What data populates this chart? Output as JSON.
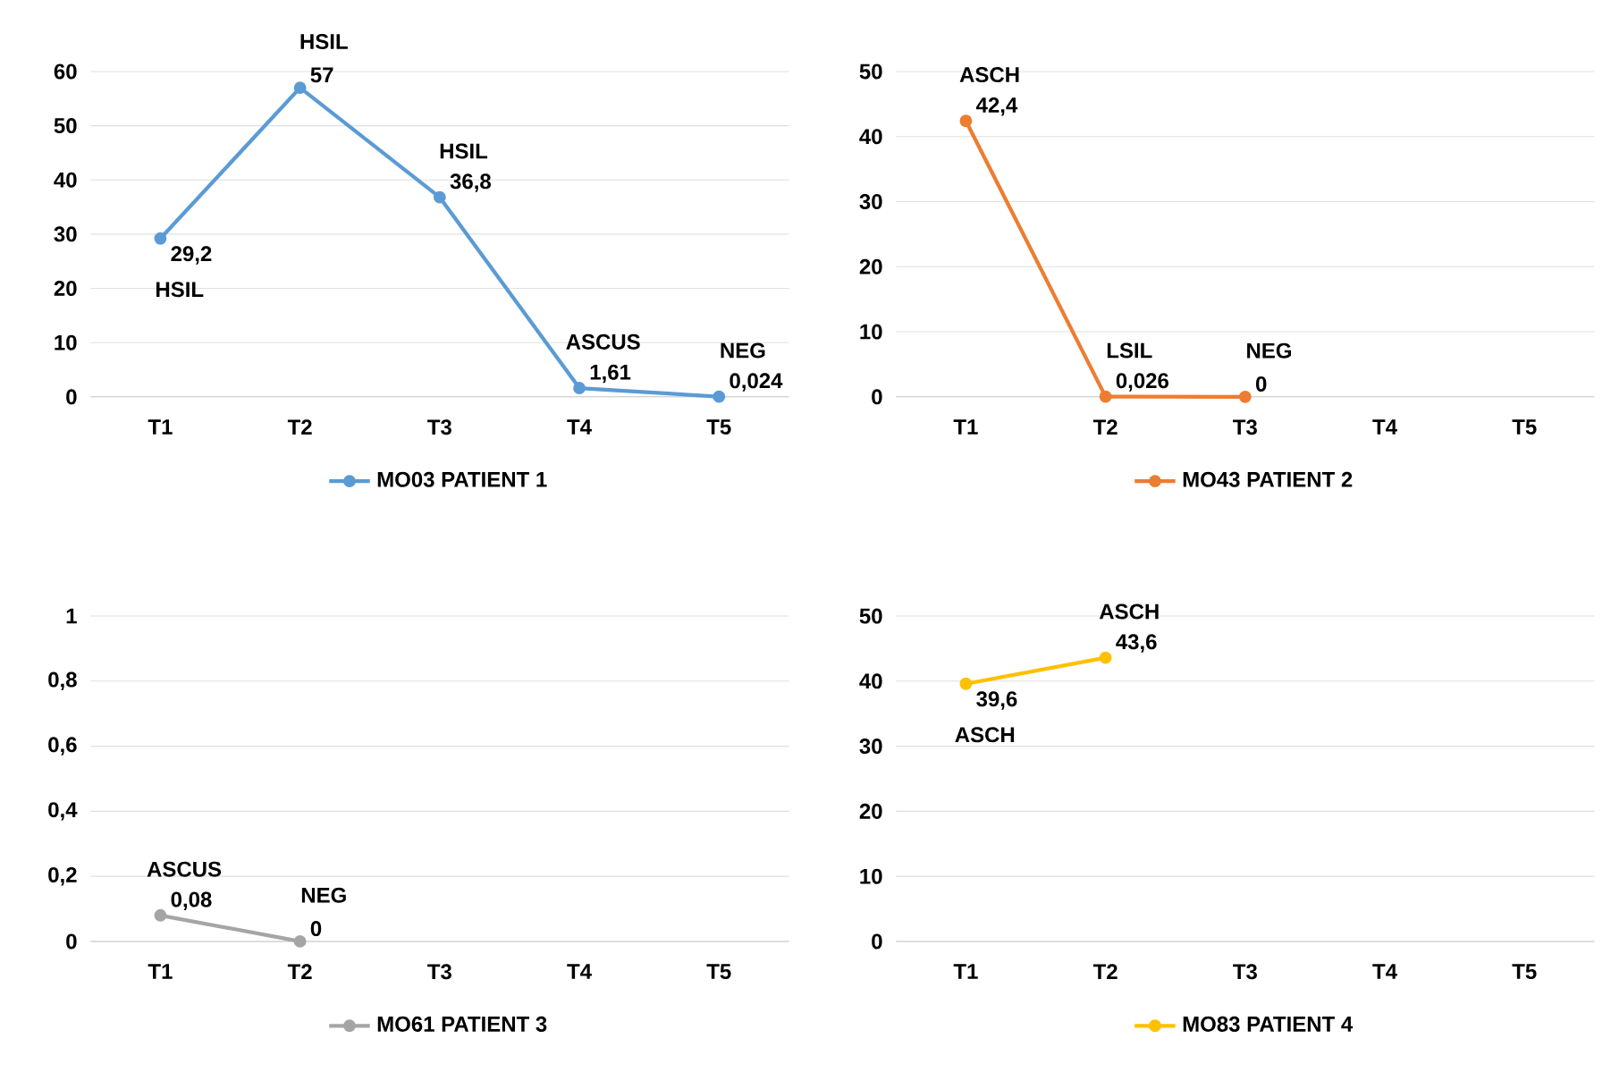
{
  "chart_data": [
    {
      "type": "line",
      "categories": [
        "T1",
        "T2",
        "T3",
        "T4",
        "T5"
      ],
      "series": [
        {
          "name": "MO03  PATIENT 1",
          "color": "#5b9bd5",
          "values": [
            29.2,
            57,
            36.8,
            1.61,
            0.024
          ],
          "value_labels": [
            "29,2",
            "57",
            "36,8",
            "1,61",
            "0,024"
          ]
        }
      ],
      "annotations": [
        {
          "text": "HSIL",
          "x": "T1",
          "y": 29.2
        },
        {
          "text": "HSIL",
          "x": "T2",
          "y": 57
        },
        {
          "text": "HSIL",
          "x": "T3",
          "y": 36.8
        },
        {
          "text": "ASCUS",
          "x": "T4",
          "y": 1.61
        },
        {
          "text": "NEG",
          "x": "T5",
          "y": 0.024
        }
      ],
      "ylim": [
        0,
        60
      ],
      "yticks": [
        0,
        10,
        20,
        30,
        40,
        50,
        60
      ],
      "grid": "y",
      "legend": "bottom",
      "marker": "circle"
    },
    {
      "type": "line",
      "categories": [
        "T1",
        "T2",
        "T3",
        "T4",
        "T5"
      ],
      "series": [
        {
          "name": "MO43    PATIENT 2",
          "color": "#ed7d31",
          "values": [
            42.4,
            0.026,
            0,
            null,
            null
          ],
          "value_labels": [
            "42,4",
            "0,026",
            "0",
            null,
            null
          ]
        }
      ],
      "annotations": [
        {
          "text": "ASCH",
          "x": "T1",
          "y": 42.4
        },
        {
          "text": "LSIL",
          "x": "T2",
          "y": 0.026
        },
        {
          "text": "NEG",
          "x": "T3",
          "y": 0
        }
      ],
      "ylim": [
        0,
        50
      ],
      "yticks": [
        0,
        10,
        20,
        30,
        40,
        50
      ],
      "grid": "y",
      "legend": "bottom",
      "marker": "circle"
    },
    {
      "type": "line",
      "categories": [
        "T1",
        "T2",
        "T3",
        "T4",
        "T5"
      ],
      "series": [
        {
          "name": "MO61  PATIENT 3",
          "color": "#a5a5a5",
          "values": [
            0.08,
            0,
            null,
            null,
            null
          ],
          "value_labels": [
            "0,08",
            "0",
            null,
            null,
            null
          ]
        }
      ],
      "annotations": [
        {
          "text": "ASCUS",
          "x": "T1",
          "y": 0.08
        },
        {
          "text": "NEG",
          "x": "T2",
          "y": 0
        }
      ],
      "ylim": [
        0,
        1
      ],
      "yticks": [
        0,
        {
          "value": 0.2,
          "label": "0,2"
        },
        {
          "value": 0.4,
          "label": "0,4"
        },
        {
          "value": 0.6,
          "label": "0,6"
        },
        {
          "value": 0.8,
          "label": "0,8"
        },
        1
      ],
      "grid": "y",
      "legend": "bottom",
      "marker": "circle"
    },
    {
      "type": "line",
      "categories": [
        "T1",
        "T2",
        "T3",
        "T4",
        "T5"
      ],
      "series": [
        {
          "name": "MO83   PATIENT 4",
          "color": "#ffc000",
          "values": [
            39.6,
            43.6,
            null,
            null,
            null
          ],
          "value_labels": [
            "39,6",
            "43,6",
            null,
            null,
            null
          ]
        }
      ],
      "annotations": [
        {
          "text": "ASCH",
          "x": "T1",
          "y": 39.6
        },
        {
          "text": "ASCH",
          "x": "T2",
          "y": 43.6
        }
      ],
      "ylim": [
        0,
        50
      ],
      "yticks": [
        0,
        10,
        20,
        30,
        40,
        50
      ],
      "grid": "y",
      "legend": "bottom",
      "marker": "circle"
    }
  ]
}
